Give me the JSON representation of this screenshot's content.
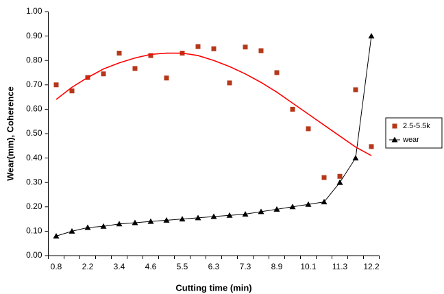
{
  "chart_data": {
    "type": "line",
    "x_label": "Cutting time (min)",
    "y_label": "Wear(mm),  Coherence",
    "categories": [
      "0.8",
      null,
      "2.2",
      null,
      "3.4",
      null,
      "4.6",
      null,
      "5.5",
      null,
      "6.3",
      null,
      "7.3",
      null,
      "8.9",
      null,
      "10.1",
      null,
      "11.3",
      null,
      "12.2"
    ],
    "series": [
      {
        "name": "2.5-5.5k",
        "color": "#b5381a",
        "marker": "square",
        "line": false,
        "values": [
          0.7,
          0.675,
          0.73,
          0.745,
          0.83,
          0.767,
          0.82,
          0.728,
          0.83,
          0.857,
          0.848,
          0.708,
          0.855,
          0.84,
          0.75,
          0.6,
          0.52,
          0.32,
          0.325,
          0.68,
          0.447
        ]
      },
      {
        "name": "wear",
        "color": "#000000",
        "marker": "triangle",
        "line": true,
        "values": [
          0.08,
          0.1,
          0.115,
          0.12,
          0.13,
          0.135,
          0.14,
          0.145,
          0.15,
          0.155,
          0.16,
          0.165,
          0.17,
          0.18,
          0.19,
          0.2,
          0.21,
          0.22,
          0.3,
          0.4,
          0.9
        ]
      },
      {
        "color": "#ff0000",
        "marker": "none",
        "line": true,
        "values": [
          0.64,
          0.69,
          0.73,
          0.765,
          0.79,
          0.81,
          0.825,
          0.83,
          0.83,
          0.82,
          0.8,
          0.775,
          0.745,
          0.71,
          0.67,
          0.625,
          0.58,
          0.535,
          0.49,
          0.445,
          0.41
        ]
      }
    ],
    "ylim": [
      0,
      1
    ],
    "yticks": [
      {
        "value": 0,
        "label": "0.00"
      },
      {
        "value": 0.1,
        "label": "0.10"
      },
      {
        "value": 0.2,
        "label": "0.20"
      },
      {
        "value": 0.3,
        "label": "0.30"
      },
      {
        "value": 0.4,
        "label": "0.40"
      },
      {
        "value": 0.5,
        "label": "0.50"
      },
      {
        "value": 0.6,
        "label": "0.60"
      },
      {
        "value": 0.7,
        "label": "0.70"
      },
      {
        "value": 0.8,
        "label": "0.80"
      },
      {
        "value": 0.9,
        "label": "0.90"
      },
      {
        "value": 1,
        "label": "1.00"
      }
    ],
    "grid": false,
    "legend": "right"
  }
}
